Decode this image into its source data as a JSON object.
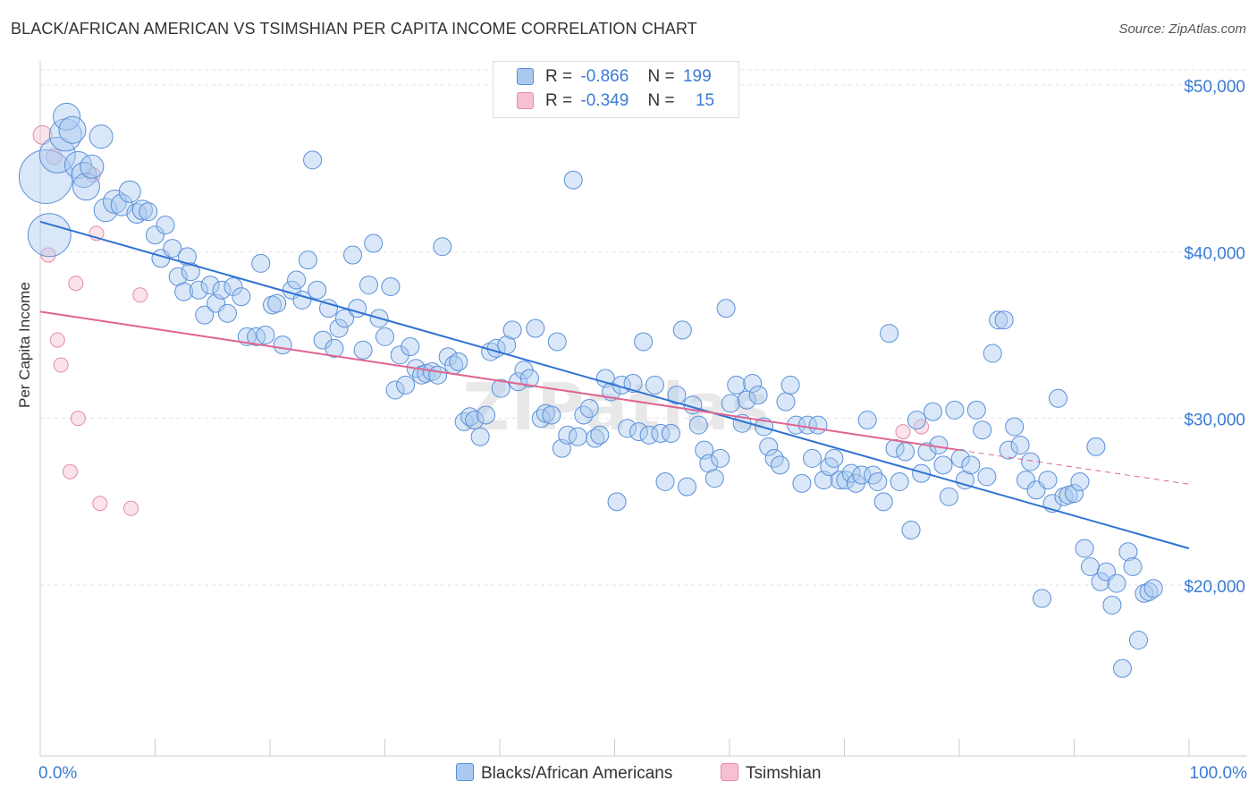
{
  "title": "BLACK/AFRICAN AMERICAN VS TSIMSHIAN PER CAPITA INCOME CORRELATION CHART",
  "source": "Source: ZipAtlas.com",
  "watermark": "ZIPatlas",
  "colors": {
    "blue_fill": "#aac9f0",
    "blue_stroke": "#5a8fd8",
    "blue_line": "#2f72d2",
    "pink_fill": "#f7c0d1",
    "pink_stroke": "#e58aa8",
    "pink_line": "#e0648f",
    "axis_text": "#3a7bd5",
    "grid": "#e3e3e3"
  },
  "legend": {
    "rows": [
      {
        "r_label": "R =",
        "r_value": "-0.866",
        "n_label": "N =",
        "n_value": "199"
      },
      {
        "r_label": "R =",
        "r_value": "-0.349",
        "n_label": "N =",
        "n_value": "15"
      }
    ]
  },
  "chart_data": {
    "type": "scatter",
    "title": "BLACK/AFRICAN AMERICAN VS TSIMSHIAN PER CAPITA INCOME CORRELATION CHART",
    "xlabel": "",
    "ylabel": "Per Capita Income",
    "xlim": [
      0,
      100
    ],
    "ylim": [
      10000,
      51000
    ],
    "x_tick_labels": [
      "0.0%",
      "100.0%"
    ],
    "y_ticks": [
      20000,
      30000,
      40000,
      50000
    ],
    "y_tick_labels": [
      "$20,000",
      "$30,000",
      "$40,000",
      "$50,000"
    ],
    "grid": true,
    "legend_position": "bottom-center",
    "series": [
      {
        "name": "Blacks/African Americans",
        "R": -0.866,
        "N": 199,
        "trend": {
          "x": [
            0,
            100
          ],
          "y": [
            41800,
            22200
          ]
        },
        "points": [
          [
            0.5,
            44500,
            3
          ],
          [
            0.8,
            41000,
            2.4
          ],
          [
            1.5,
            45800,
            2
          ],
          [
            2.2,
            47000,
            1.8
          ],
          [
            2.3,
            48100,
            1.5
          ],
          [
            2.8,
            47300,
            1.5
          ],
          [
            3.3,
            45200,
            1.5
          ],
          [
            3.8,
            44600,
            1.4
          ],
          [
            4.0,
            43900,
            1.5
          ],
          [
            4.5,
            45100,
            1.3
          ],
          [
            5.3,
            46900,
            1.3
          ],
          [
            5.7,
            42500,
            1.3
          ],
          [
            6.5,
            43000,
            1.3
          ],
          [
            7.1,
            42800,
            1.2
          ],
          [
            7.8,
            43600,
            1.2
          ],
          [
            8.4,
            42300,
            1.1
          ],
          [
            8.9,
            42500,
            1.1
          ],
          [
            9.4,
            42400,
            1.0
          ],
          [
            10.0,
            41000,
            1.0
          ],
          [
            10.5,
            39600,
            1.0
          ],
          [
            10.9,
            41600,
            1.0
          ],
          [
            11.5,
            40200,
            1.0
          ],
          [
            12.0,
            38500,
            1.0
          ],
          [
            12.5,
            37600,
            1.0
          ],
          [
            12.8,
            39700,
            1.0
          ],
          [
            13.1,
            38800,
            1.0
          ],
          [
            13.8,
            37700,
            1.0
          ],
          [
            14.3,
            36200,
            1.0
          ],
          [
            14.8,
            38000,
            1.0
          ],
          [
            15.3,
            36900,
            1.0
          ],
          [
            15.8,
            37700,
            1.0
          ],
          [
            16.3,
            36300,
            1.0
          ],
          [
            16.8,
            37900,
            1.0
          ],
          [
            17.5,
            37300,
            1.0
          ],
          [
            18.0,
            34900,
            1.0
          ],
          [
            18.8,
            34900,
            1.0
          ],
          [
            19.2,
            39300,
            1.0
          ],
          [
            19.6,
            35000,
            1.0
          ],
          [
            20.2,
            36800,
            1.0
          ],
          [
            20.6,
            36900,
            1.0
          ],
          [
            21.1,
            34400,
            1.0
          ],
          [
            21.9,
            37700,
            1.0
          ],
          [
            22.3,
            38300,
            1.0
          ],
          [
            22.8,
            37100,
            1.0
          ],
          [
            23.3,
            39500,
            1.0
          ],
          [
            23.7,
            45500,
            1.0
          ],
          [
            24.1,
            37700,
            1.0
          ],
          [
            24.6,
            34700,
            1.0
          ],
          [
            25.1,
            36600,
            1.0
          ],
          [
            25.6,
            34200,
            1.0
          ],
          [
            26.0,
            35400,
            1.0
          ],
          [
            26.5,
            36000,
            1.0
          ],
          [
            27.2,
            39800,
            1.0
          ],
          [
            27.6,
            36600,
            1.0
          ],
          [
            28.1,
            34100,
            1.0
          ],
          [
            28.6,
            38000,
            1.0
          ],
          [
            29.0,
            40500,
            1.0
          ],
          [
            29.5,
            36000,
            1.0
          ],
          [
            30.0,
            34900,
            1.0
          ],
          [
            30.5,
            37900,
            1.0
          ],
          [
            30.9,
            31700,
            1.0
          ],
          [
            31.3,
            33800,
            1.0
          ],
          [
            31.8,
            32000,
            1.0
          ],
          [
            32.2,
            34300,
            1.0
          ],
          [
            32.7,
            33000,
            1.0
          ],
          [
            33.2,
            32600,
            1.0
          ],
          [
            33.6,
            32700,
            1.0
          ],
          [
            34.1,
            32800,
            1.0
          ],
          [
            34.6,
            32600,
            1.0
          ],
          [
            35.0,
            40300,
            1.0
          ],
          [
            35.5,
            33700,
            1.0
          ],
          [
            36.0,
            33200,
            1.0
          ],
          [
            36.4,
            33400,
            1.0
          ],
          [
            36.9,
            29800,
            1.0
          ],
          [
            37.4,
            30100,
            1.0
          ],
          [
            37.8,
            29900,
            1.0
          ],
          [
            38.3,
            28900,
            1.0
          ],
          [
            38.8,
            30200,
            1.0
          ],
          [
            39.2,
            34000,
            1.0
          ],
          [
            39.7,
            34200,
            1.0
          ],
          [
            40.1,
            31800,
            1.0
          ],
          [
            40.6,
            34400,
            1.0
          ],
          [
            41.1,
            35300,
            1.0
          ],
          [
            41.6,
            32200,
            1.0
          ],
          [
            42.1,
            32900,
            1.0
          ],
          [
            42.6,
            32400,
            1.0
          ],
          [
            43.1,
            35400,
            1.0
          ],
          [
            43.6,
            30000,
            1.0
          ],
          [
            44.0,
            30300,
            1.0
          ],
          [
            44.5,
            30200,
            1.0
          ],
          [
            45.0,
            34600,
            1.0
          ],
          [
            45.4,
            28200,
            1.0
          ],
          [
            45.9,
            29000,
            1.0
          ],
          [
            46.4,
            44300,
            1.0
          ],
          [
            46.8,
            28900,
            1.0
          ],
          [
            47.3,
            30200,
            1.0
          ],
          [
            47.8,
            30600,
            1.0
          ],
          [
            48.3,
            28800,
            1.0
          ],
          [
            48.7,
            29000,
            1.0
          ],
          [
            49.2,
            32400,
            1.0
          ],
          [
            49.7,
            31600,
            1.0
          ],
          [
            50.2,
            25000,
            1.0
          ],
          [
            50.6,
            32000,
            1.0
          ],
          [
            51.1,
            29400,
            1.0
          ],
          [
            51.6,
            32100,
            1.0
          ],
          [
            52.1,
            29200,
            1.0
          ],
          [
            52.5,
            34600,
            1.0
          ],
          [
            53.0,
            29000,
            1.0
          ],
          [
            53.5,
            32000,
            1.0
          ],
          [
            54.0,
            29100,
            1.0
          ],
          [
            54.4,
            26200,
            1.0
          ],
          [
            54.9,
            29100,
            1.0
          ],
          [
            55.4,
            31400,
            1.0
          ],
          [
            55.9,
            35300,
            1.0
          ],
          [
            56.3,
            25900,
            1.0
          ],
          [
            56.8,
            30800,
            1.0
          ],
          [
            57.3,
            29600,
            1.0
          ],
          [
            57.8,
            28100,
            1.0
          ],
          [
            58.2,
            27300,
            1.0
          ],
          [
            58.7,
            26400,
            1.0
          ],
          [
            59.2,
            27600,
            1.0
          ],
          [
            59.7,
            36600,
            1.0
          ],
          [
            60.1,
            30900,
            1.0
          ],
          [
            60.6,
            32000,
            1.0
          ],
          [
            61.1,
            29700,
            1.0
          ],
          [
            61.5,
            31100,
            1.0
          ],
          [
            62.0,
            32100,
            1.0
          ],
          [
            62.5,
            31400,
            1.0
          ],
          [
            63.0,
            29500,
            1.0
          ],
          [
            63.4,
            28300,
            1.0
          ],
          [
            63.9,
            27600,
            1.0
          ],
          [
            64.4,
            27200,
            1.0
          ],
          [
            64.9,
            31000,
            1.0
          ],
          [
            65.3,
            32000,
            1.0
          ],
          [
            65.8,
            29600,
            1.0
          ],
          [
            66.3,
            26100,
            1.0
          ],
          [
            66.8,
            29600,
            1.0
          ],
          [
            67.2,
            27600,
            1.0
          ],
          [
            67.7,
            29600,
            1.0
          ],
          [
            68.2,
            26300,
            1.0
          ],
          [
            68.7,
            27100,
            1.0
          ],
          [
            69.1,
            27600,
            1.0
          ],
          [
            69.6,
            26300,
            1.0
          ],
          [
            70.1,
            26300,
            1.0
          ],
          [
            70.6,
            26700,
            1.0
          ],
          [
            71.0,
            26100,
            1.0
          ],
          [
            71.5,
            26600,
            1.0
          ],
          [
            72.0,
            29900,
            1.0
          ],
          [
            72.5,
            26600,
            1.0
          ],
          [
            72.9,
            26200,
            1.0
          ],
          [
            73.4,
            25000,
            1.0
          ],
          [
            73.9,
            35100,
            1.0
          ],
          [
            74.4,
            28200,
            1.0
          ],
          [
            74.8,
            26200,
            1.0
          ],
          [
            75.3,
            28000,
            1.0
          ],
          [
            75.8,
            23300,
            1.0
          ],
          [
            76.3,
            29900,
            1.0
          ],
          [
            76.7,
            26700,
            1.0
          ],
          [
            77.2,
            28000,
            1.0
          ],
          [
            77.7,
            30400,
            1.0
          ],
          [
            78.2,
            28400,
            1.0
          ],
          [
            78.6,
            27200,
            1.0
          ],
          [
            79.1,
            25300,
            1.0
          ],
          [
            79.6,
            30500,
            1.0
          ],
          [
            80.1,
            27600,
            1.0
          ],
          [
            80.5,
            26300,
            1.0
          ],
          [
            81.0,
            27200,
            1.0
          ],
          [
            81.5,
            30500,
            1.0
          ],
          [
            82.0,
            29300,
            1.0
          ],
          [
            82.4,
            26500,
            1.0
          ],
          [
            82.9,
            33900,
            1.0
          ],
          [
            83.4,
            35900,
            1.0
          ],
          [
            83.9,
            35900,
            1.0
          ],
          [
            84.3,
            28100,
            1.0
          ],
          [
            84.8,
            29500,
            1.0
          ],
          [
            85.3,
            28400,
            1.0
          ],
          [
            85.8,
            26300,
            1.0
          ],
          [
            86.2,
            27400,
            1.0
          ],
          [
            86.7,
            25700,
            1.0
          ],
          [
            87.2,
            19200,
            1.0
          ],
          [
            87.7,
            26300,
            1.0
          ],
          [
            88.1,
            24900,
            1.0
          ],
          [
            88.6,
            31200,
            1.0
          ],
          [
            89.1,
            25300,
            1.0
          ],
          [
            89.5,
            25400,
            1.0
          ],
          [
            90.0,
            25500,
            1.0
          ],
          [
            90.5,
            26200,
            1.0
          ],
          [
            90.9,
            22200,
            1.0
          ],
          [
            91.4,
            21100,
            1.0
          ],
          [
            91.9,
            28300,
            1.0
          ],
          [
            92.3,
            20200,
            1.0
          ],
          [
            92.8,
            20800,
            1.0
          ],
          [
            93.3,
            18800,
            1.0
          ],
          [
            93.7,
            20100,
            1.0
          ],
          [
            94.2,
            15000,
            1.0
          ],
          [
            94.7,
            22000,
            1.0
          ],
          [
            95.1,
            21100,
            1.0
          ],
          [
            95.6,
            16700,
            1.0
          ],
          [
            96.1,
            19500,
            1.0
          ],
          [
            96.5,
            19600,
            1.0
          ],
          [
            96.9,
            19800,
            1.0
          ]
        ]
      },
      {
        "name": "Tsimshian",
        "R": -0.349,
        "N": 15,
        "trend": {
          "x": [
            0,
            80
          ],
          "y": [
            36400,
            28100
          ]
        },
        "trend_dashed": {
          "x": [
            80,
            100
          ],
          "y": [
            28100,
            26050
          ]
        },
        "points": [
          [
            0.2,
            47000,
            1.3
          ],
          [
            1.2,
            45700,
            1.1
          ],
          [
            0.7,
            39800,
            1.0
          ],
          [
            4.6,
            44600,
            1.0
          ],
          [
            4.9,
            41100,
            1.0
          ],
          [
            3.1,
            38100,
            1.0
          ],
          [
            8.7,
            37400,
            1.0
          ],
          [
            1.5,
            34700,
            1.0
          ],
          [
            1.8,
            33200,
            1.0
          ],
          [
            3.3,
            30000,
            1.0
          ],
          [
            2.6,
            26800,
            1.0
          ],
          [
            5.2,
            24900,
            1.0
          ],
          [
            7.9,
            24600,
            1.0
          ],
          [
            75.1,
            29200,
            1.0
          ],
          [
            76.7,
            29500,
            1.0
          ]
        ]
      }
    ]
  },
  "bottom_legend": [
    "Blacks/African Americans",
    "Tsimshian"
  ]
}
